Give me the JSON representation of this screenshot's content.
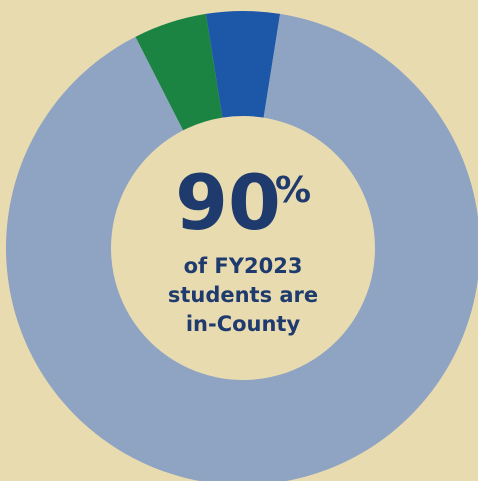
{
  "chart_data": {
    "type": "pie",
    "values": [
      5,
      5,
      90
    ],
    "colors": [
      "#1c8443",
      "#1d57a8",
      "#8fa3c3"
    ],
    "center_text": {
      "number": "90",
      "unit": "%",
      "lines": [
        "of FY2023",
        "students are",
        "in-County"
      ]
    }
  }
}
